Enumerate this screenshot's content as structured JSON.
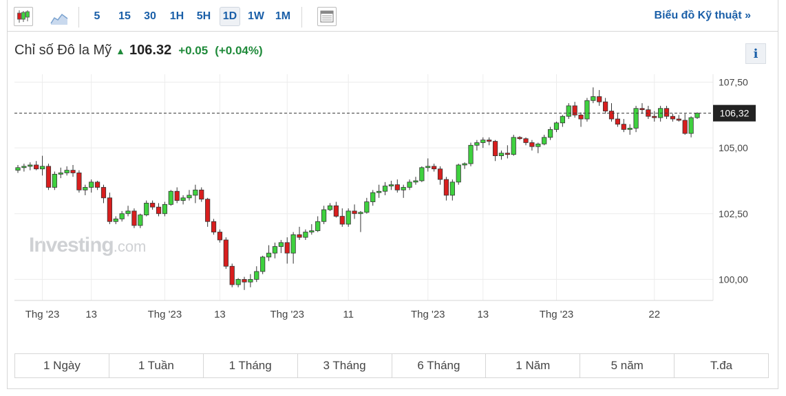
{
  "toolbar": {
    "candle_icon": "candlestick-icon",
    "area_icon": "area-chart-icon",
    "intervals": [
      "5",
      "15",
      "30",
      "1H",
      "5H",
      "1D",
      "1W",
      "1M"
    ],
    "active_interval": "1D",
    "table_icon": "table-icon",
    "technical_link": "Biểu đồ Kỹ thuật »"
  },
  "header": {
    "name": "Chỉ số Đô la Mỹ",
    "arrow": "▲",
    "price": "106.32",
    "change": "+0.05",
    "change_pct": "(+0.04%)",
    "info": "i"
  },
  "watermark": {
    "main": "Investing",
    "suffix": ".com"
  },
  "ranges": [
    "1 Ngày",
    "1 Tuần",
    "1 Tháng",
    "3 Tháng",
    "6 Tháng",
    "1 Năm",
    "5 năm",
    "T.đa"
  ],
  "colors": {
    "up": "#3fd13f",
    "down": "#d81e1e",
    "link": "#1a5fa8",
    "positive": "#1f8a3a"
  },
  "chart_data": {
    "type": "candlestick",
    "last_price_label": "106,32",
    "last_price": 106.32,
    "y_ticks": [
      "100,00",
      "102,50",
      "105,00",
      "107,50"
    ],
    "y_tick_values": [
      100,
      102.5,
      105,
      107.5
    ],
    "ylim": [
      99.2,
      107.8
    ],
    "x_tick_labels": [
      "Thg '23",
      "13",
      "Thg '23",
      "13",
      "Thg '23",
      "11",
      "Thg '23",
      "13",
      "Thg '23",
      "22"
    ],
    "x_tick_index": [
      4,
      12,
      24,
      33,
      44,
      54,
      67,
      76,
      88,
      104
    ],
    "grid": true,
    "ohlc": [
      [
        104.15,
        104.35,
        104.05,
        104.25
      ],
      [
        104.25,
        104.4,
        104.1,
        104.3
      ],
      [
        104.3,
        104.45,
        104.15,
        104.35
      ],
      [
        104.35,
        104.5,
        104.15,
        104.2
      ],
      [
        104.2,
        104.7,
        103.95,
        104.3
      ],
      [
        104.3,
        104.4,
        103.4,
        103.5
      ],
      [
        103.5,
        104.1,
        103.4,
        104.0
      ],
      [
        104.0,
        104.25,
        103.85,
        104.05
      ],
      [
        104.05,
        104.3,
        103.95,
        104.15
      ],
      [
        104.15,
        104.35,
        103.9,
        104.05
      ],
      [
        104.05,
        104.15,
        103.3,
        103.4
      ],
      [
        103.4,
        103.6,
        103.2,
        103.5
      ],
      [
        103.5,
        103.8,
        103.3,
        103.7
      ],
      [
        103.7,
        103.75,
        103.4,
        103.5
      ],
      [
        103.5,
        103.6,
        102.9,
        103.1
      ],
      [
        103.1,
        103.3,
        102.1,
        102.2
      ],
      [
        102.2,
        102.4,
        102.1,
        102.3
      ],
      [
        102.3,
        102.6,
        102.2,
        102.5
      ],
      [
        102.5,
        102.8,
        102.4,
        102.6
      ],
      [
        102.6,
        102.7,
        101.95,
        102.05
      ],
      [
        102.05,
        102.5,
        101.95,
        102.45
      ],
      [
        102.45,
        103.0,
        102.4,
        102.9
      ],
      [
        102.9,
        103.0,
        102.65,
        102.75
      ],
      [
        102.75,
        102.9,
        102.4,
        102.5
      ],
      [
        102.5,
        102.95,
        102.4,
        102.85
      ],
      [
        102.85,
        103.4,
        102.8,
        103.35
      ],
      [
        103.35,
        103.5,
        102.9,
        103.0
      ],
      [
        103.0,
        103.2,
        102.85,
        103.1
      ],
      [
        103.1,
        103.4,
        103.0,
        103.2
      ],
      [
        103.2,
        103.6,
        102.9,
        103.4
      ],
      [
        103.4,
        103.5,
        102.95,
        103.05
      ],
      [
        103.05,
        103.1,
        102.0,
        102.2
      ],
      [
        102.2,
        102.3,
        101.7,
        101.8
      ],
      [
        101.8,
        101.9,
        101.4,
        101.5
      ],
      [
        101.5,
        101.6,
        100.4,
        100.5
      ],
      [
        100.5,
        100.6,
        99.7,
        99.8
      ],
      [
        99.8,
        100.05,
        99.7,
        100.0
      ],
      [
        100.0,
        100.1,
        99.6,
        99.9
      ],
      [
        99.9,
        100.2,
        99.7,
        100.0
      ],
      [
        100.0,
        100.5,
        99.9,
        100.3
      ],
      [
        100.3,
        100.9,
        100.2,
        100.85
      ],
      [
        100.85,
        101.3,
        100.7,
        101.0
      ],
      [
        101.0,
        101.4,
        100.8,
        101.25
      ],
      [
        101.25,
        101.5,
        101.0,
        101.4
      ],
      [
        101.4,
        101.6,
        100.6,
        101.0
      ],
      [
        101.0,
        101.8,
        100.6,
        101.7
      ],
      [
        101.7,
        102.0,
        101.5,
        101.6
      ],
      [
        101.6,
        101.9,
        101.5,
        101.8
      ],
      [
        101.8,
        102.1,
        101.7,
        101.85
      ],
      [
        101.85,
        102.4,
        101.8,
        102.2
      ],
      [
        102.2,
        102.8,
        102.1,
        102.65
      ],
      [
        102.65,
        102.9,
        102.6,
        102.8
      ],
      [
        102.8,
        102.95,
        102.35,
        102.4
      ],
      [
        102.4,
        102.7,
        102.0,
        102.1
      ],
      [
        102.1,
        102.7,
        102.0,
        102.6
      ],
      [
        102.6,
        102.85,
        102.3,
        102.5
      ],
      [
        102.5,
        102.6,
        101.8,
        102.55
      ],
      [
        102.55,
        103.1,
        102.5,
        102.95
      ],
      [
        102.95,
        103.4,
        102.8,
        103.3
      ],
      [
        103.3,
        103.6,
        103.1,
        103.35
      ],
      [
        103.35,
        103.7,
        103.2,
        103.55
      ],
      [
        103.55,
        103.75,
        103.4,
        103.6
      ],
      [
        103.6,
        103.8,
        103.3,
        103.4
      ],
      [
        103.4,
        103.6,
        103.1,
        103.5
      ],
      [
        103.5,
        103.8,
        103.4,
        103.7
      ],
      [
        103.7,
        103.9,
        103.6,
        103.75
      ],
      [
        103.75,
        104.3,
        103.7,
        104.25
      ],
      [
        104.25,
        104.6,
        104.1,
        104.3
      ],
      [
        104.3,
        104.4,
        104.1,
        104.2
      ],
      [
        104.2,
        104.3,
        103.6,
        103.8
      ],
      [
        103.8,
        103.9,
        103.0,
        103.2
      ],
      [
        103.2,
        103.8,
        103.0,
        103.7
      ],
      [
        103.7,
        104.4,
        103.6,
        104.35
      ],
      [
        104.35,
        104.45,
        104.2,
        104.4
      ],
      [
        104.4,
        105.2,
        104.3,
        105.1
      ],
      [
        105.1,
        105.3,
        104.9,
        105.2
      ],
      [
        105.2,
        105.4,
        105.0,
        105.3
      ],
      [
        105.3,
        105.4,
        105.1,
        105.25
      ],
      [
        105.25,
        105.3,
        104.5,
        104.7
      ],
      [
        104.7,
        104.9,
        104.55,
        104.8
      ],
      [
        104.8,
        105.1,
        104.6,
        104.75
      ],
      [
        104.75,
        105.5,
        104.7,
        105.4
      ],
      [
        105.4,
        105.45,
        105.3,
        105.35
      ],
      [
        105.35,
        105.4,
        105.1,
        105.2
      ],
      [
        105.2,
        105.3,
        104.9,
        105.05
      ],
      [
        105.05,
        105.2,
        104.8,
        105.15
      ],
      [
        105.15,
        105.5,
        105.1,
        105.4
      ],
      [
        105.4,
        105.8,
        105.3,
        105.7
      ],
      [
        105.7,
        106.0,
        105.6,
        105.95
      ],
      [
        105.95,
        106.25,
        105.8,
        106.2
      ],
      [
        106.2,
        106.7,
        106.1,
        106.6
      ],
      [
        106.6,
        106.75,
        106.15,
        106.25
      ],
      [
        106.25,
        106.35,
        105.8,
        106.1
      ],
      [
        106.1,
        106.9,
        106.0,
        106.8
      ],
      [
        106.8,
        107.3,
        106.7,
        106.95
      ],
      [
        106.95,
        107.2,
        106.6,
        106.75
      ],
      [
        106.75,
        106.9,
        106.3,
        106.4
      ],
      [
        106.4,
        106.7,
        106.0,
        106.1
      ],
      [
        106.1,
        106.3,
        105.8,
        105.9
      ],
      [
        105.9,
        106.1,
        105.6,
        105.7
      ],
      [
        105.7,
        105.9,
        105.5,
        105.75
      ],
      [
        105.75,
        106.6,
        105.6,
        106.5
      ],
      [
        106.5,
        106.7,
        106.3,
        106.45
      ],
      [
        106.45,
        106.6,
        106.1,
        106.2
      ],
      [
        106.2,
        106.4,
        106.0,
        106.15
      ],
      [
        106.15,
        106.6,
        106.0,
        106.5
      ],
      [
        106.5,
        106.6,
        106.1,
        106.2
      ],
      [
        106.2,
        106.3,
        106.0,
        106.1
      ],
      [
        106.1,
        106.25,
        106.0,
        106.05
      ],
      [
        106.05,
        106.3,
        105.5,
        105.55
      ],
      [
        105.55,
        106.2,
        105.4,
        106.15
      ],
      [
        106.15,
        106.35,
        106.1,
        106.32
      ]
    ]
  }
}
